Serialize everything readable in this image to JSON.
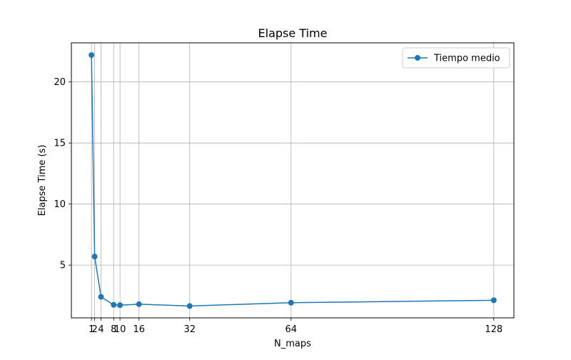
{
  "chart_data": {
    "type": "line",
    "title": "Elapse Time",
    "xlabel": "N_maps",
    "ylabel": "Elapse Time (s)",
    "x": [
      1,
      2,
      4,
      8,
      10,
      16,
      32,
      64,
      128
    ],
    "series": [
      {
        "name": "Tiempo medio",
        "values": [
          22.2,
          5.7,
          2.4,
          1.75,
          1.72,
          1.8,
          1.65,
          1.92,
          2.12
        ],
        "color": "#1f77b4",
        "marker": "circle"
      }
    ],
    "xticks": [
      1,
      2,
      4,
      8,
      10,
      16,
      32,
      64,
      128
    ],
    "xtick_labels": [
      "1",
      "2",
      "4",
      "8",
      "10",
      "16",
      "32",
      "64",
      "128"
    ],
    "yticks": [
      5,
      10,
      15,
      20
    ],
    "ytick_labels": [
      "5",
      "10",
      "15",
      "20"
    ],
    "xlim": [
      -5.35,
      134.35
    ],
    "ylim": [
      0.68,
      23.2
    ],
    "grid": true,
    "legend_position": "upper right"
  }
}
